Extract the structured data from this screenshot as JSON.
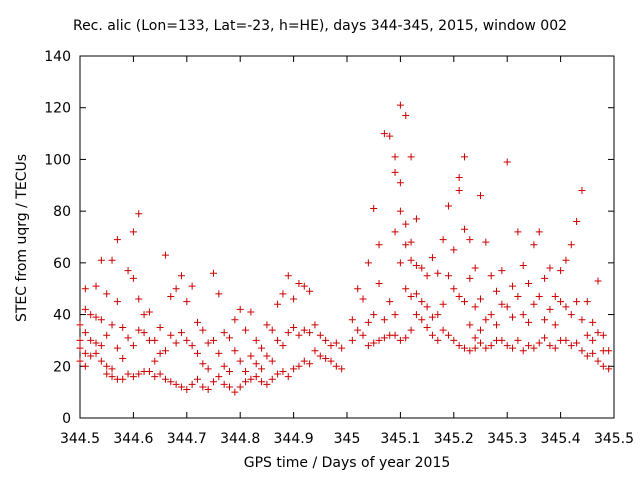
{
  "chart_data": {
    "type": "scatter",
    "title": "Rec. alic (Lon=133, Lat=-23, h=HE), days 344-345, 2015, window 002",
    "xlabel": "GPS time / Days of year 2015",
    "ylabel": "STEC from uqrg / TECUs",
    "xlim": [
      344.5,
      345.5
    ],
    "ylim": [
      0,
      140
    ],
    "x_ticks": [
      344.5,
      344.6,
      344.7,
      344.8,
      344.9,
      345,
      345.1,
      345.2,
      345.3,
      345.4,
      345.5
    ],
    "x_tick_labels": [
      "344.5",
      "344.6",
      "344.7",
      "344.8",
      "344.9",
      "345",
      "345.1",
      "345.2",
      "345.3",
      "345.4",
      "345.5"
    ],
    "y_ticks": [
      0,
      20,
      40,
      60,
      80,
      100,
      120,
      140
    ],
    "y_tick_labels": [
      "0",
      "20",
      "40",
      "60",
      "80",
      "100",
      "120",
      "140"
    ],
    "grid": false,
    "marker": "plus",
    "color": "#cc0000",
    "series": [
      {
        "points": [
          [
            344.5,
            30
          ],
          [
            344.5,
            36
          ],
          [
            344.5,
            27
          ],
          [
            344.5,
            22
          ],
          [
            344.51,
            50
          ],
          [
            344.51,
            42
          ],
          [
            344.51,
            33
          ],
          [
            344.51,
            25
          ],
          [
            344.51,
            20
          ],
          [
            344.52,
            40
          ],
          [
            344.52,
            30
          ],
          [
            344.52,
            24
          ],
          [
            344.53,
            51
          ],
          [
            344.53,
            39
          ],
          [
            344.53,
            29
          ],
          [
            344.53,
            25
          ],
          [
            344.54,
            61
          ],
          [
            344.54,
            38
          ],
          [
            344.54,
            28
          ],
          [
            344.54,
            22
          ],
          [
            344.55,
            48
          ],
          [
            344.55,
            32
          ],
          [
            344.55,
            20
          ],
          [
            344.55,
            17
          ],
          [
            344.56,
            61
          ],
          [
            344.56,
            36
          ],
          [
            344.56,
            19
          ],
          [
            344.56,
            16
          ],
          [
            344.57,
            69
          ],
          [
            344.57,
            45
          ],
          [
            344.57,
            27
          ],
          [
            344.57,
            15
          ],
          [
            344.58,
            35
          ],
          [
            344.58,
            23
          ],
          [
            344.58,
            15
          ],
          [
            344.59,
            57
          ],
          [
            344.59,
            31
          ],
          [
            344.59,
            17
          ],
          [
            344.6,
            72
          ],
          [
            344.6,
            54
          ],
          [
            344.6,
            28
          ],
          [
            344.6,
            16
          ],
          [
            344.61,
            79
          ],
          [
            344.61,
            46
          ],
          [
            344.61,
            34
          ],
          [
            344.61,
            17
          ],
          [
            344.62,
            40
          ],
          [
            344.62,
            33
          ],
          [
            344.62,
            18
          ],
          [
            344.63,
            41
          ],
          [
            344.63,
            30
          ],
          [
            344.63,
            18
          ],
          [
            344.64,
            30
          ],
          [
            344.64,
            22
          ],
          [
            344.64,
            16
          ],
          [
            344.65,
            35
          ],
          [
            344.65,
            25
          ],
          [
            344.65,
            17
          ],
          [
            344.66,
            63
          ],
          [
            344.66,
            26
          ],
          [
            344.66,
            15
          ],
          [
            344.67,
            47
          ],
          [
            344.67,
            32
          ],
          [
            344.67,
            14
          ],
          [
            344.68,
            50
          ],
          [
            344.68,
            29
          ],
          [
            344.68,
            13
          ],
          [
            344.69,
            55
          ],
          [
            344.69,
            33
          ],
          [
            344.69,
            12
          ],
          [
            344.7,
            45
          ],
          [
            344.7,
            30
          ],
          [
            344.7,
            11
          ],
          [
            344.71,
            51
          ],
          [
            344.71,
            28
          ],
          [
            344.71,
            13
          ],
          [
            344.72,
            37
          ],
          [
            344.72,
            25
          ],
          [
            344.72,
            15
          ],
          [
            344.73,
            34
          ],
          [
            344.73,
            21
          ],
          [
            344.73,
            12
          ],
          [
            344.74,
            29
          ],
          [
            344.74,
            19
          ],
          [
            344.74,
            11
          ],
          [
            344.75,
            56
          ],
          [
            344.75,
            30
          ],
          [
            344.75,
            14
          ],
          [
            344.76,
            48
          ],
          [
            344.76,
            25
          ],
          [
            344.76,
            16
          ],
          [
            344.77,
            33
          ],
          [
            344.77,
            20
          ],
          [
            344.77,
            13
          ],
          [
            344.78,
            31
          ],
          [
            344.78,
            18
          ],
          [
            344.78,
            12
          ],
          [
            344.79,
            38
          ],
          [
            344.79,
            26
          ],
          [
            344.79,
            10
          ],
          [
            344.8,
            42
          ],
          [
            344.8,
            22
          ],
          [
            344.8,
            12
          ],
          [
            344.81,
            34
          ],
          [
            344.81,
            18
          ],
          [
            344.81,
            14
          ],
          [
            344.82,
            41
          ],
          [
            344.82,
            24
          ],
          [
            344.82,
            15
          ],
          [
            344.83,
            30
          ],
          [
            344.83,
            21
          ],
          [
            344.83,
            16
          ],
          [
            344.84,
            27
          ],
          [
            344.84,
            19
          ],
          [
            344.84,
            14
          ],
          [
            344.85,
            36
          ],
          [
            344.85,
            24
          ],
          [
            344.85,
            13
          ],
          [
            344.86,
            34
          ],
          [
            344.86,
            22
          ],
          [
            344.86,
            15
          ],
          [
            344.87,
            44
          ],
          [
            344.87,
            30
          ],
          [
            344.87,
            17
          ],
          [
            344.88,
            48
          ],
          [
            344.88,
            28
          ],
          [
            344.88,
            18
          ],
          [
            344.89,
            55
          ],
          [
            344.89,
            33
          ],
          [
            344.89,
            16
          ],
          [
            344.9,
            46
          ],
          [
            344.9,
            35
          ],
          [
            344.9,
            19
          ],
          [
            344.91,
            52
          ],
          [
            344.91,
            32
          ],
          [
            344.91,
            20
          ],
          [
            344.92,
            51
          ],
          [
            344.92,
            34
          ],
          [
            344.92,
            22
          ],
          [
            344.93,
            49
          ],
          [
            344.93,
            33
          ],
          [
            344.93,
            21
          ],
          [
            344.94,
            36
          ],
          [
            344.94,
            26
          ],
          [
            344.95,
            32
          ],
          [
            344.95,
            24
          ],
          [
            344.96,
            30
          ],
          [
            344.96,
            23
          ],
          [
            344.97,
            28
          ],
          [
            344.97,
            22
          ],
          [
            344.98,
            29
          ],
          [
            344.98,
            20
          ],
          [
            344.99,
            27
          ],
          [
            344.99,
            19
          ],
          [
            345.01,
            38
          ],
          [
            345.01,
            30
          ],
          [
            345.02,
            50
          ],
          [
            345.02,
            34
          ],
          [
            345.03,
            46
          ],
          [
            345.03,
            32
          ],
          [
            345.04,
            60
          ],
          [
            345.04,
            37
          ],
          [
            345.04,
            28
          ],
          [
            345.05,
            81
          ],
          [
            345.05,
            40
          ],
          [
            345.05,
            29
          ],
          [
            345.06,
            67
          ],
          [
            345.06,
            52
          ],
          [
            345.06,
            30
          ],
          [
            345.07,
            110
          ],
          [
            345.07,
            38
          ],
          [
            345.07,
            31
          ],
          [
            345.08,
            109
          ],
          [
            345.08,
            45
          ],
          [
            345.08,
            32
          ],
          [
            345.09,
            101
          ],
          [
            345.09,
            95
          ],
          [
            345.09,
            72
          ],
          [
            345.09,
            40
          ],
          [
            345.09,
            32
          ],
          [
            345.1,
            121
          ],
          [
            345.1,
            91
          ],
          [
            345.1,
            80
          ],
          [
            345.1,
            60
          ],
          [
            345.1,
            30
          ],
          [
            345.11,
            117
          ],
          [
            345.11,
            75
          ],
          [
            345.11,
            67
          ],
          [
            345.11,
            50
          ],
          [
            345.11,
            31
          ],
          [
            345.12,
            101
          ],
          [
            345.12,
            68
          ],
          [
            345.12,
            61
          ],
          [
            345.12,
            47
          ],
          [
            345.12,
            34
          ],
          [
            345.13,
            77
          ],
          [
            345.13,
            59
          ],
          [
            345.13,
            48
          ],
          [
            345.13,
            40
          ],
          [
            345.14,
            58
          ],
          [
            345.14,
            45
          ],
          [
            345.14,
            38
          ],
          [
            345.15,
            55
          ],
          [
            345.15,
            43
          ],
          [
            345.15,
            35
          ],
          [
            345.16,
            62
          ],
          [
            345.16,
            39
          ],
          [
            345.16,
            32
          ],
          [
            345.17,
            56
          ],
          [
            345.17,
            40
          ],
          [
            345.17,
            30
          ],
          [
            345.18,
            69
          ],
          [
            345.18,
            44
          ],
          [
            345.18,
            34
          ],
          [
            345.19,
            82
          ],
          [
            345.19,
            55
          ],
          [
            345.19,
            32
          ],
          [
            345.2,
            65
          ],
          [
            345.2,
            50
          ],
          [
            345.2,
            30
          ],
          [
            345.21,
            93
          ],
          [
            345.21,
            88
          ],
          [
            345.21,
            47
          ],
          [
            345.21,
            28
          ],
          [
            345.22,
            101
          ],
          [
            345.22,
            73
          ],
          [
            345.22,
            45
          ],
          [
            345.22,
            27
          ],
          [
            345.23,
            69
          ],
          [
            345.23,
            54
          ],
          [
            345.23,
            36
          ],
          [
            345.23,
            26
          ],
          [
            345.24,
            58
          ],
          [
            345.24,
            43
          ],
          [
            345.24,
            31
          ],
          [
            345.24,
            27
          ],
          [
            345.25,
            86
          ],
          [
            345.25,
            46
          ],
          [
            345.25,
            34
          ],
          [
            345.25,
            29
          ],
          [
            345.26,
            68
          ],
          [
            345.26,
            38
          ],
          [
            345.26,
            27
          ],
          [
            345.27,
            55
          ],
          [
            345.27,
            40
          ],
          [
            345.27,
            28
          ],
          [
            345.28,
            49
          ],
          [
            345.28,
            36
          ],
          [
            345.28,
            30
          ],
          [
            345.29,
            57
          ],
          [
            345.29,
            44
          ],
          [
            345.29,
            30
          ],
          [
            345.3,
            99
          ],
          [
            345.3,
            43
          ],
          [
            345.3,
            28
          ],
          [
            345.31,
            51
          ],
          [
            345.31,
            39
          ],
          [
            345.31,
            27
          ],
          [
            345.32,
            72
          ],
          [
            345.32,
            47
          ],
          [
            345.32,
            30
          ],
          [
            345.33,
            59
          ],
          [
            345.33,
            40
          ],
          [
            345.33,
            26
          ],
          [
            345.34,
            52
          ],
          [
            345.34,
            37
          ],
          [
            345.34,
            28
          ],
          [
            345.35,
            67
          ],
          [
            345.35,
            44
          ],
          [
            345.35,
            27
          ],
          [
            345.36,
            72
          ],
          [
            345.36,
            47
          ],
          [
            345.36,
            29
          ],
          [
            345.37,
            54
          ],
          [
            345.37,
            38
          ],
          [
            345.37,
            31
          ],
          [
            345.38,
            58
          ],
          [
            345.38,
            42
          ],
          [
            345.38,
            28
          ],
          [
            345.39,
            47
          ],
          [
            345.39,
            36
          ],
          [
            345.39,
            27
          ],
          [
            345.4,
            57
          ],
          [
            345.4,
            45
          ],
          [
            345.4,
            30
          ],
          [
            345.41,
            61
          ],
          [
            345.41,
            43
          ],
          [
            345.41,
            30
          ],
          [
            345.42,
            67
          ],
          [
            345.42,
            40
          ],
          [
            345.42,
            28
          ],
          [
            345.43,
            76
          ],
          [
            345.43,
            45
          ],
          [
            345.43,
            29
          ],
          [
            345.44,
            88
          ],
          [
            345.44,
            38
          ],
          [
            345.44,
            26
          ],
          [
            345.45,
            45
          ],
          [
            345.45,
            32
          ],
          [
            345.45,
            24
          ],
          [
            345.46,
            37
          ],
          [
            345.46,
            30
          ],
          [
            345.46,
            25
          ],
          [
            345.47,
            53
          ],
          [
            345.47,
            33
          ],
          [
            345.47,
            22
          ],
          [
            345.48,
            32
          ],
          [
            345.48,
            26
          ],
          [
            345.48,
            20
          ],
          [
            345.49,
            26
          ],
          [
            345.49,
            19
          ]
        ]
      }
    ]
  }
}
